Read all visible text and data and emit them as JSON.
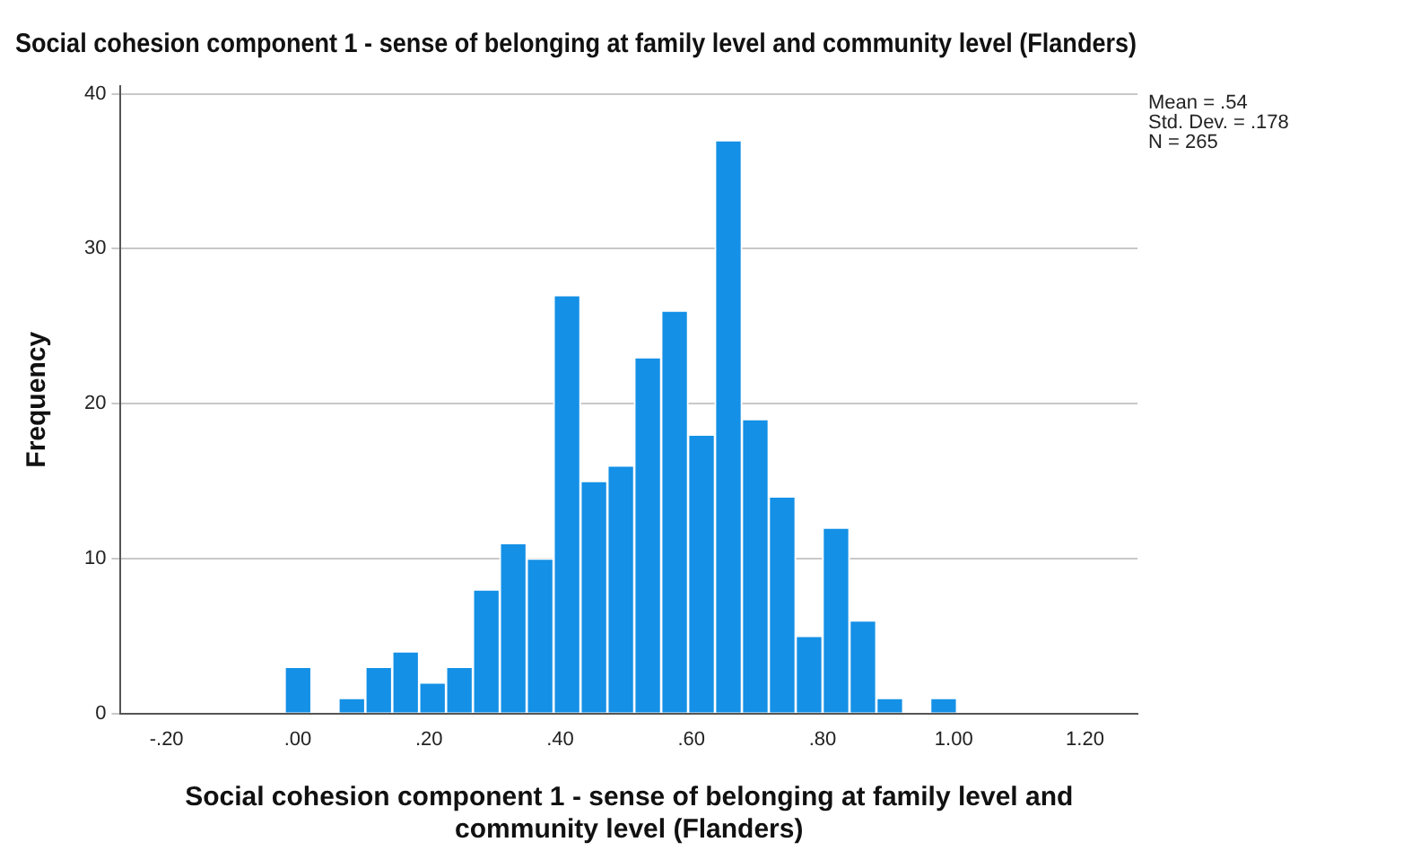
{
  "chart_data": {
    "type": "histogram",
    "title": "Social cohesion component 1 - sense of belonging at family level and community level (Flanders)",
    "xlabel": "Social cohesion component 1 - sense of belonging at family level and community level (Flanders)",
    "ylabel": "Frequency",
    "bins": [
      -0.02,
      0.021,
      0.062,
      0.103,
      0.144,
      0.185,
      0.226,
      0.267,
      0.308,
      0.349,
      0.39,
      0.431,
      0.472,
      0.513,
      0.554,
      0.595,
      0.636,
      0.677,
      0.718,
      0.759,
      0.8,
      0.841,
      0.882,
      0.923,
      0.964,
      1.005
    ],
    "values": [
      3,
      0,
      1,
      3,
      4,
      2,
      3,
      8,
      11,
      10,
      27,
      15,
      16,
      23,
      26,
      18,
      37,
      19,
      14,
      5,
      12,
      6,
      1,
      0,
      1
    ],
    "color": "#1490e6",
    "xlim": [
      -0.27,
      1.28
    ],
    "xticks": [
      {
        "value": -0.2,
        "label": "-.20"
      },
      {
        "value": 0,
        "label": ".00"
      },
      {
        "value": 0.2,
        "label": ".20"
      },
      {
        "value": 0.4,
        "label": ".40"
      },
      {
        "value": 0.6,
        "label": ".60"
      },
      {
        "value": 0.8,
        "label": ".80"
      },
      {
        "value": 1,
        "label": "1.00"
      },
      {
        "value": 1.2,
        "label": "1.20"
      }
    ],
    "ylim": [
      0,
      40.5
    ],
    "yticks": [
      0,
      10,
      20,
      30,
      40
    ],
    "grid": "y",
    "legend": false,
    "annotations": [
      "Mean = .54",
      "Std. Dev. = .178",
      "N = 265"
    ]
  }
}
